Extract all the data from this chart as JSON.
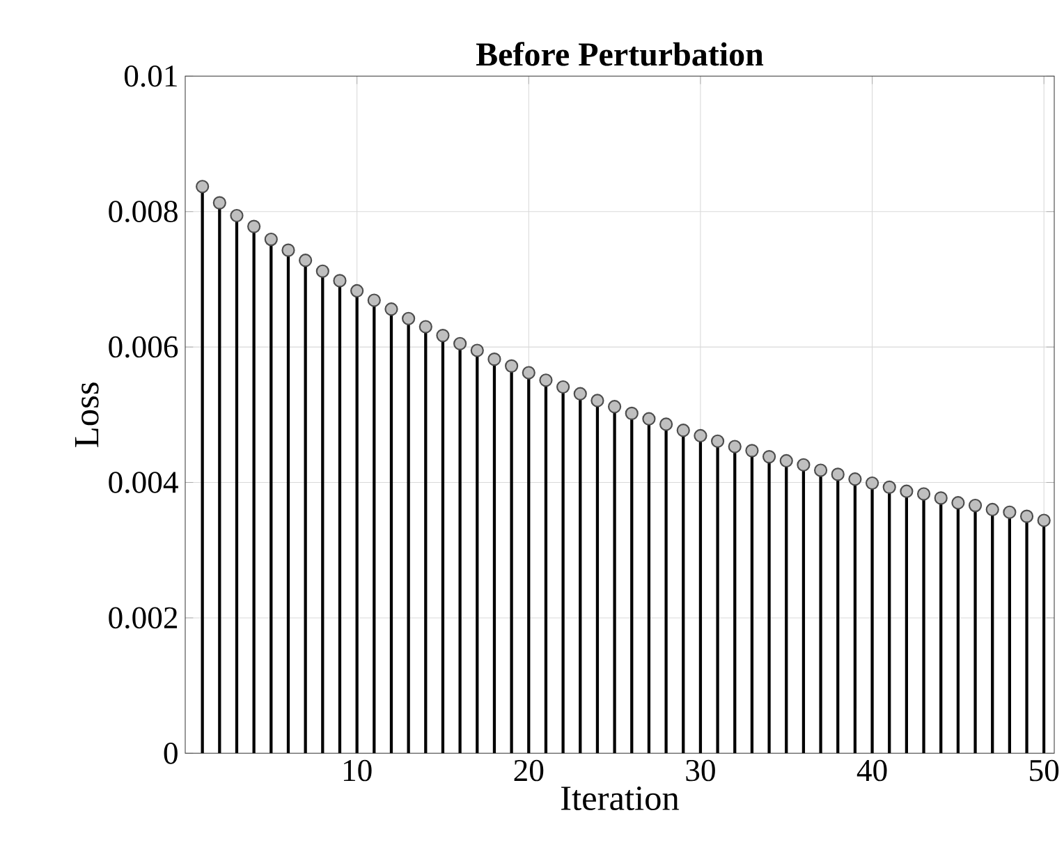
{
  "chart_data": {
    "type": "lollipop",
    "title": "Before Perturbation",
    "xlabel": "Iteration",
    "ylabel": "Loss",
    "x": [
      1,
      2,
      3,
      4,
      5,
      6,
      7,
      8,
      9,
      10,
      11,
      12,
      13,
      14,
      15,
      16,
      17,
      18,
      19,
      20,
      21,
      22,
      23,
      24,
      25,
      26,
      27,
      28,
      29,
      30,
      31,
      32,
      33,
      34,
      35,
      36,
      37,
      38,
      39,
      40,
      41,
      42,
      43,
      44,
      45,
      46,
      47,
      48,
      49,
      50
    ],
    "values": [
      0.00837,
      0.00813,
      0.00794,
      0.00778,
      0.00759,
      0.00743,
      0.00728,
      0.00712,
      0.00698,
      0.00683,
      0.00669,
      0.00656,
      0.00642,
      0.0063,
      0.00617,
      0.00605,
      0.00595,
      0.00582,
      0.00572,
      0.00562,
      0.00551,
      0.00541,
      0.00531,
      0.00521,
      0.00512,
      0.00502,
      0.00494,
      0.00486,
      0.00477,
      0.00469,
      0.00461,
      0.00453,
      0.00447,
      0.00438,
      0.00432,
      0.00426,
      0.00418,
      0.00412,
      0.00405,
      0.00399,
      0.00393,
      0.00387,
      0.00383,
      0.00377,
      0.0037,
      0.00366,
      0.0036,
      0.00356,
      0.0035,
      0.00344
    ],
    "color": "#bfbfbf",
    "grid": true,
    "xlim": [
      0,
      50.6
    ],
    "ylim": [
      0,
      0.01
    ],
    "xticks": [
      10,
      20,
      30,
      40,
      50
    ],
    "yticks": [
      0,
      0.002,
      0.004,
      0.006,
      0.008,
      0.01
    ]
  }
}
